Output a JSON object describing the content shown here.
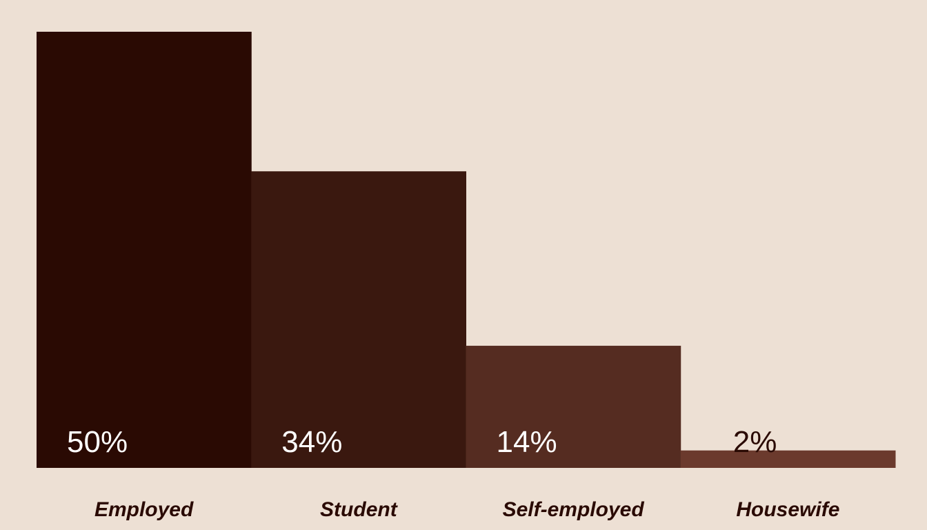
{
  "chart_data": {
    "type": "bar",
    "categories": [
      "Employed",
      "Student",
      "Self-employed",
      "Housewife"
    ],
    "values": [
      50,
      34,
      14,
      2
    ],
    "value_labels": [
      "50%",
      "34%",
      "14%",
      "2%"
    ],
    "unit": "%",
    "ylim": [
      0,
      50
    ],
    "grid": false,
    "legend": "none",
    "colors": {
      "background": "#ede0d4",
      "bars": [
        "#2a0a03",
        "#3a180f",
        "#552c21",
        "#6b3a2d"
      ],
      "value_label_light": "#ffffff",
      "value_label_dark": "#2a0a03",
      "category_label": "#2a0a03"
    }
  }
}
